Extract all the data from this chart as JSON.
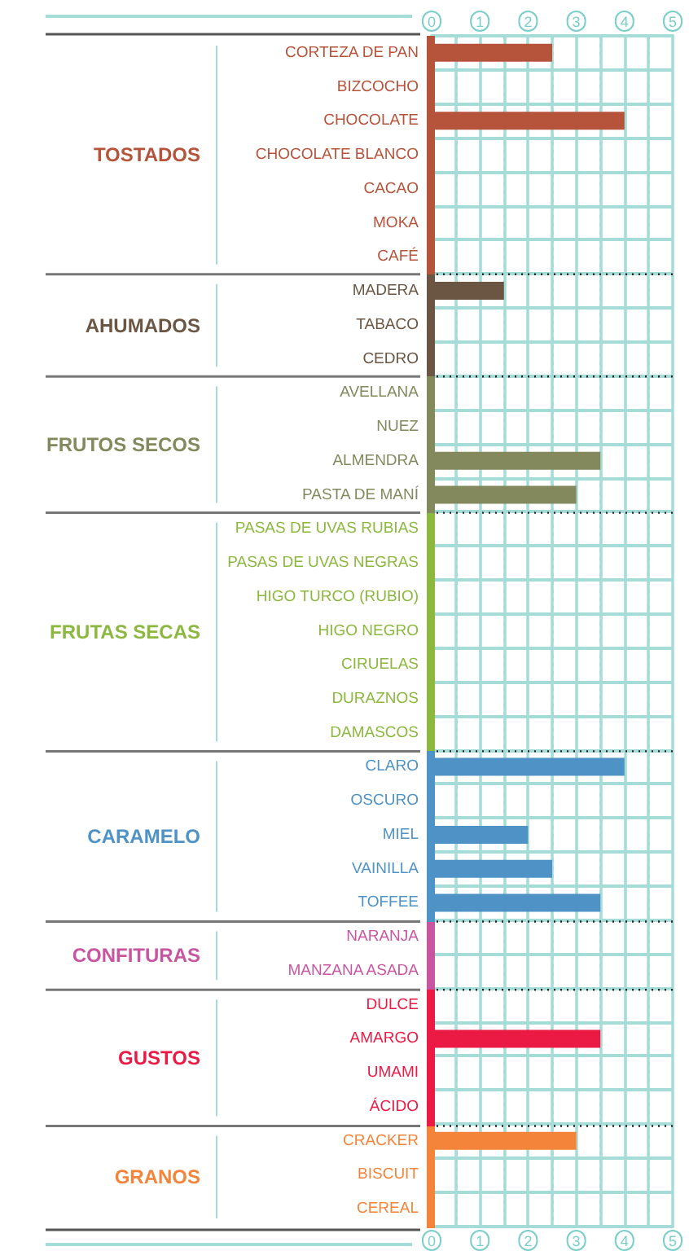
{
  "chart_data": {
    "type": "bar",
    "orientation": "horizontal",
    "categories": [
      "CORTEZA DE PAN",
      "BIZCOCHO",
      "CHOCOLATE",
      "CHOCOLATE BLANCO",
      "CACAO",
      "MOKA",
      "CAFÉ",
      "MADERA",
      "TABACO",
      "CEDRO",
      "AVELLANA",
      "NUEZ",
      "ALMENDRA",
      "PASTA DE MANÍ",
      "PASAS DE UVAS RUBIAS",
      "PASAS DE UVAS NEGRAS",
      "HIGO TURCO (RUBIO)",
      "HIGO NEGRO",
      "CIRUELAS",
      "DURAZNOS",
      "DAMASCOS",
      "CLARO",
      "OSCURO",
      "MIEL",
      "VAINILLA",
      "TOFFEE",
      "NARANJA",
      "MANZANA ASADA",
      "DULCE",
      "AMARGO",
      "UMAMI",
      "ÁCIDO",
      "CRACKER",
      "BISCUIT",
      "CEREAL"
    ],
    "values": [
      2.5,
      0,
      4,
      0,
      0,
      0,
      0,
      1.5,
      0,
      0,
      0,
      0,
      3.5,
      3,
      0,
      0,
      0,
      0,
      0,
      0,
      0,
      4,
      0,
      2,
      2.5,
      3.5,
      0,
      0,
      0,
      3.5,
      0,
      0,
      3,
      0,
      0
    ],
    "colors": [
      "#b5533b",
      "#b5533b",
      "#b5533b",
      "#b5533b",
      "#b5533b",
      "#b5533b",
      "#b5533b",
      "#6b5643",
      "#6b5643",
      "#6b5643",
      "#83895d",
      "#83895d",
      "#83895d",
      "#83895d",
      "#8cb83f",
      "#8cb83f",
      "#8cb83f",
      "#8cb83f",
      "#8cb83f",
      "#8cb83f",
      "#8cb83f",
      "#4f93c6",
      "#4f93c6",
      "#4f93c6",
      "#4f93c6",
      "#4f93c6",
      "#c855a0",
      "#c855a0",
      "#ea1a45",
      "#ea1a45",
      "#ea1a45",
      "#ea1a45",
      "#f4843a",
      "#f4843a",
      "#f4843a"
    ],
    "xlim": [
      0,
      5
    ],
    "xticks": [
      0,
      {
        "value": 0.5,
        "label": null
      },
      1,
      {
        "value": 1.5,
        "label": null
      },
      2,
      {
        "value": 2.5,
        "label": null
      },
      3,
      {
        "value": 3.5,
        "label": null
      },
      4,
      {
        "value": 4.5,
        "label": null
      },
      5
    ],
    "x2lim": [
      0,
      5
    ],
    "x2ticks": [
      0,
      {
        "value": 0.5,
        "label": null
      },
      1,
      {
        "value": 1.5,
        "label": null
      },
      2,
      {
        "value": 2.5,
        "label": null
      },
      3,
      {
        "value": 3.5,
        "label": null
      },
      4,
      {
        "value": 4.5,
        "label": null
      },
      5
    ],
    "grid": true,
    "annotations": [
      "TOSTADOS",
      "AHUMADOS",
      "FRUTOS SECOS",
      "FRUTAS SECAS",
      "CARAMELO",
      "CONFITURAS",
      "GUSTOS",
      "GRANOS"
    ]
  }
}
